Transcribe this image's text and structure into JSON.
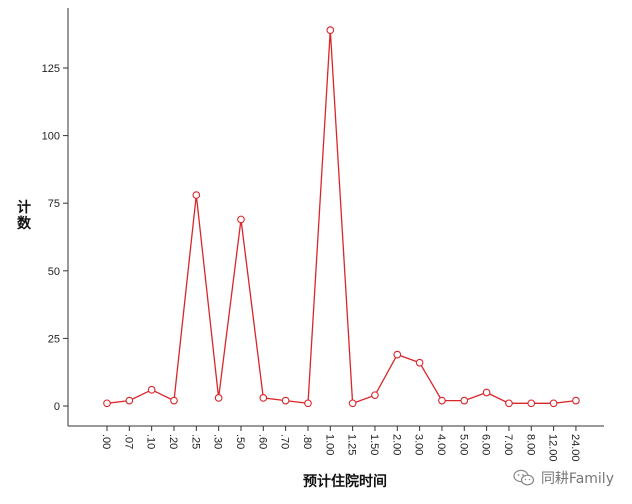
{
  "chart_data": {
    "type": "line",
    "xlabel": "预计住院时间",
    "ylabel": "计数",
    "categories": [
      ".00",
      ".07",
      ".10",
      ".20",
      ".25",
      ".30",
      ".50",
      ".60",
      ".70",
      ".80",
      "1.00",
      "1.25",
      "1.50",
      "2.00",
      "3.00",
      "4.00",
      "5.00",
      "6.00",
      "7.00",
      "8.00",
      "12.00",
      "24.00"
    ],
    "values": [
      1,
      2,
      6,
      2,
      78,
      3,
      69,
      3,
      2,
      1,
      139,
      1,
      4,
      19,
      16,
      2,
      2,
      5,
      1,
      1,
      1,
      2
    ],
    "ylim": [
      0,
      145
    ],
    "yticks": [
      0,
      25,
      50,
      75,
      100,
      125
    ],
    "grid": false,
    "line_color": "#d9262b",
    "marker": "open-circle"
  },
  "watermark": {
    "text": "同耕Family",
    "icon": "wechat-icon"
  }
}
